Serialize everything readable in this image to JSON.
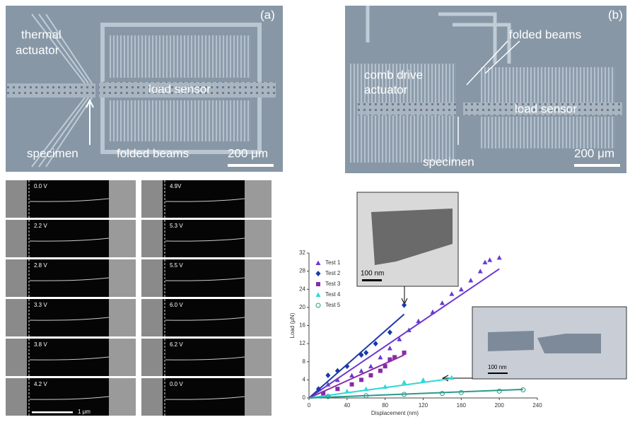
{
  "panels": {
    "a": {
      "label": "(a)",
      "texts": [
        "thermal",
        "actuator",
        "load sensor",
        "specimen",
        "folded beams"
      ],
      "scale": "200 μm"
    },
    "b": {
      "label": "(b)",
      "texts": [
        "folded beams",
        "comb drive",
        "actuator",
        "load sensor",
        "specimen"
      ],
      "scale": "200 μm"
    }
  },
  "frames": [
    "0.0 V",
    "2.2 V",
    "2.8 V",
    "3.3 V",
    "3.8 V",
    "4.2 V",
    "4.9V",
    "5.3 V",
    "5.5 V",
    "6.0 V",
    "6.2 V",
    "0.0 V"
  ],
  "frames_scale": "1 μm",
  "insets": {
    "top_scale": "100 nm",
    "right_scale": "100 nm"
  },
  "chart_data": {
    "type": "scatter",
    "xlabel": "Displacement (nm)",
    "ylabel": "Load (μN)",
    "xlim": [
      0,
      240
    ],
    "ylim": [
      0,
      32
    ],
    "xticks": [
      0,
      40,
      80,
      120,
      160,
      200,
      240
    ],
    "yticks": [
      0,
      4,
      8,
      12,
      16,
      20,
      24,
      28,
      32
    ],
    "series": [
      {
        "name": "Test 1",
        "color": "#6a3ad0",
        "marker": "triangle",
        "x": [
          10,
          20,
          30,
          45,
          55,
          65,
          75,
          85,
          95,
          105,
          115,
          130,
          140,
          150,
          160,
          170,
          180,
          185,
          190,
          200
        ],
        "values": [
          2,
          3,
          4,
          5,
          6,
          7,
          9,
          11,
          13,
          15,
          17,
          19,
          21,
          23,
          24,
          26,
          28,
          30,
          30.5,
          31
        ],
        "fit": {
          "x": [
            0,
            200
          ],
          "y": [
            0,
            28.5
          ]
        }
      },
      {
        "name": "Test 2",
        "color": "#1a3aaa",
        "marker": "diamond",
        "x": [
          10,
          20,
          30,
          40,
          55,
          60,
          70,
          85,
          100
        ],
        "values": [
          2,
          5,
          6,
          7,
          9.5,
          10,
          12,
          14.5,
          20.5
        ],
        "fit": {
          "x": [
            0,
            100
          ],
          "y": [
            0,
            18.5
          ]
        }
      },
      {
        "name": "Test 3",
        "color": "#8a2aa8",
        "marker": "square",
        "x": [
          15,
          30,
          45,
          55,
          65,
          75,
          80,
          85,
          90,
          100
        ],
        "values": [
          1,
          2,
          3,
          4,
          5,
          6,
          7,
          8.5,
          9,
          10
        ],
        "fit": {
          "x": [
            0,
            100
          ],
          "y": [
            0,
            9.5
          ]
        }
      },
      {
        "name": "Test 4",
        "color": "#30d8d8",
        "marker": "triangle",
        "x": [
          20,
          40,
          60,
          80,
          100,
          120,
          150
        ],
        "values": [
          0.5,
          1.5,
          2,
          2.5,
          3.5,
          4,
          4.5
        ],
        "fit": {
          "x": [
            0,
            150
          ],
          "y": [
            0,
            4.3
          ]
        }
      },
      {
        "name": "Test 5",
        "color": "#2a9a8a",
        "marker": "circle",
        "x": [
          20,
          60,
          100,
          140,
          160,
          200,
          225
        ],
        "values": [
          0.3,
          0.5,
          0.8,
          1,
          1.2,
          1.5,
          1.8
        ],
        "fit": {
          "x": [
            0,
            225
          ],
          "y": [
            0,
            1.9
          ]
        }
      }
    ]
  }
}
